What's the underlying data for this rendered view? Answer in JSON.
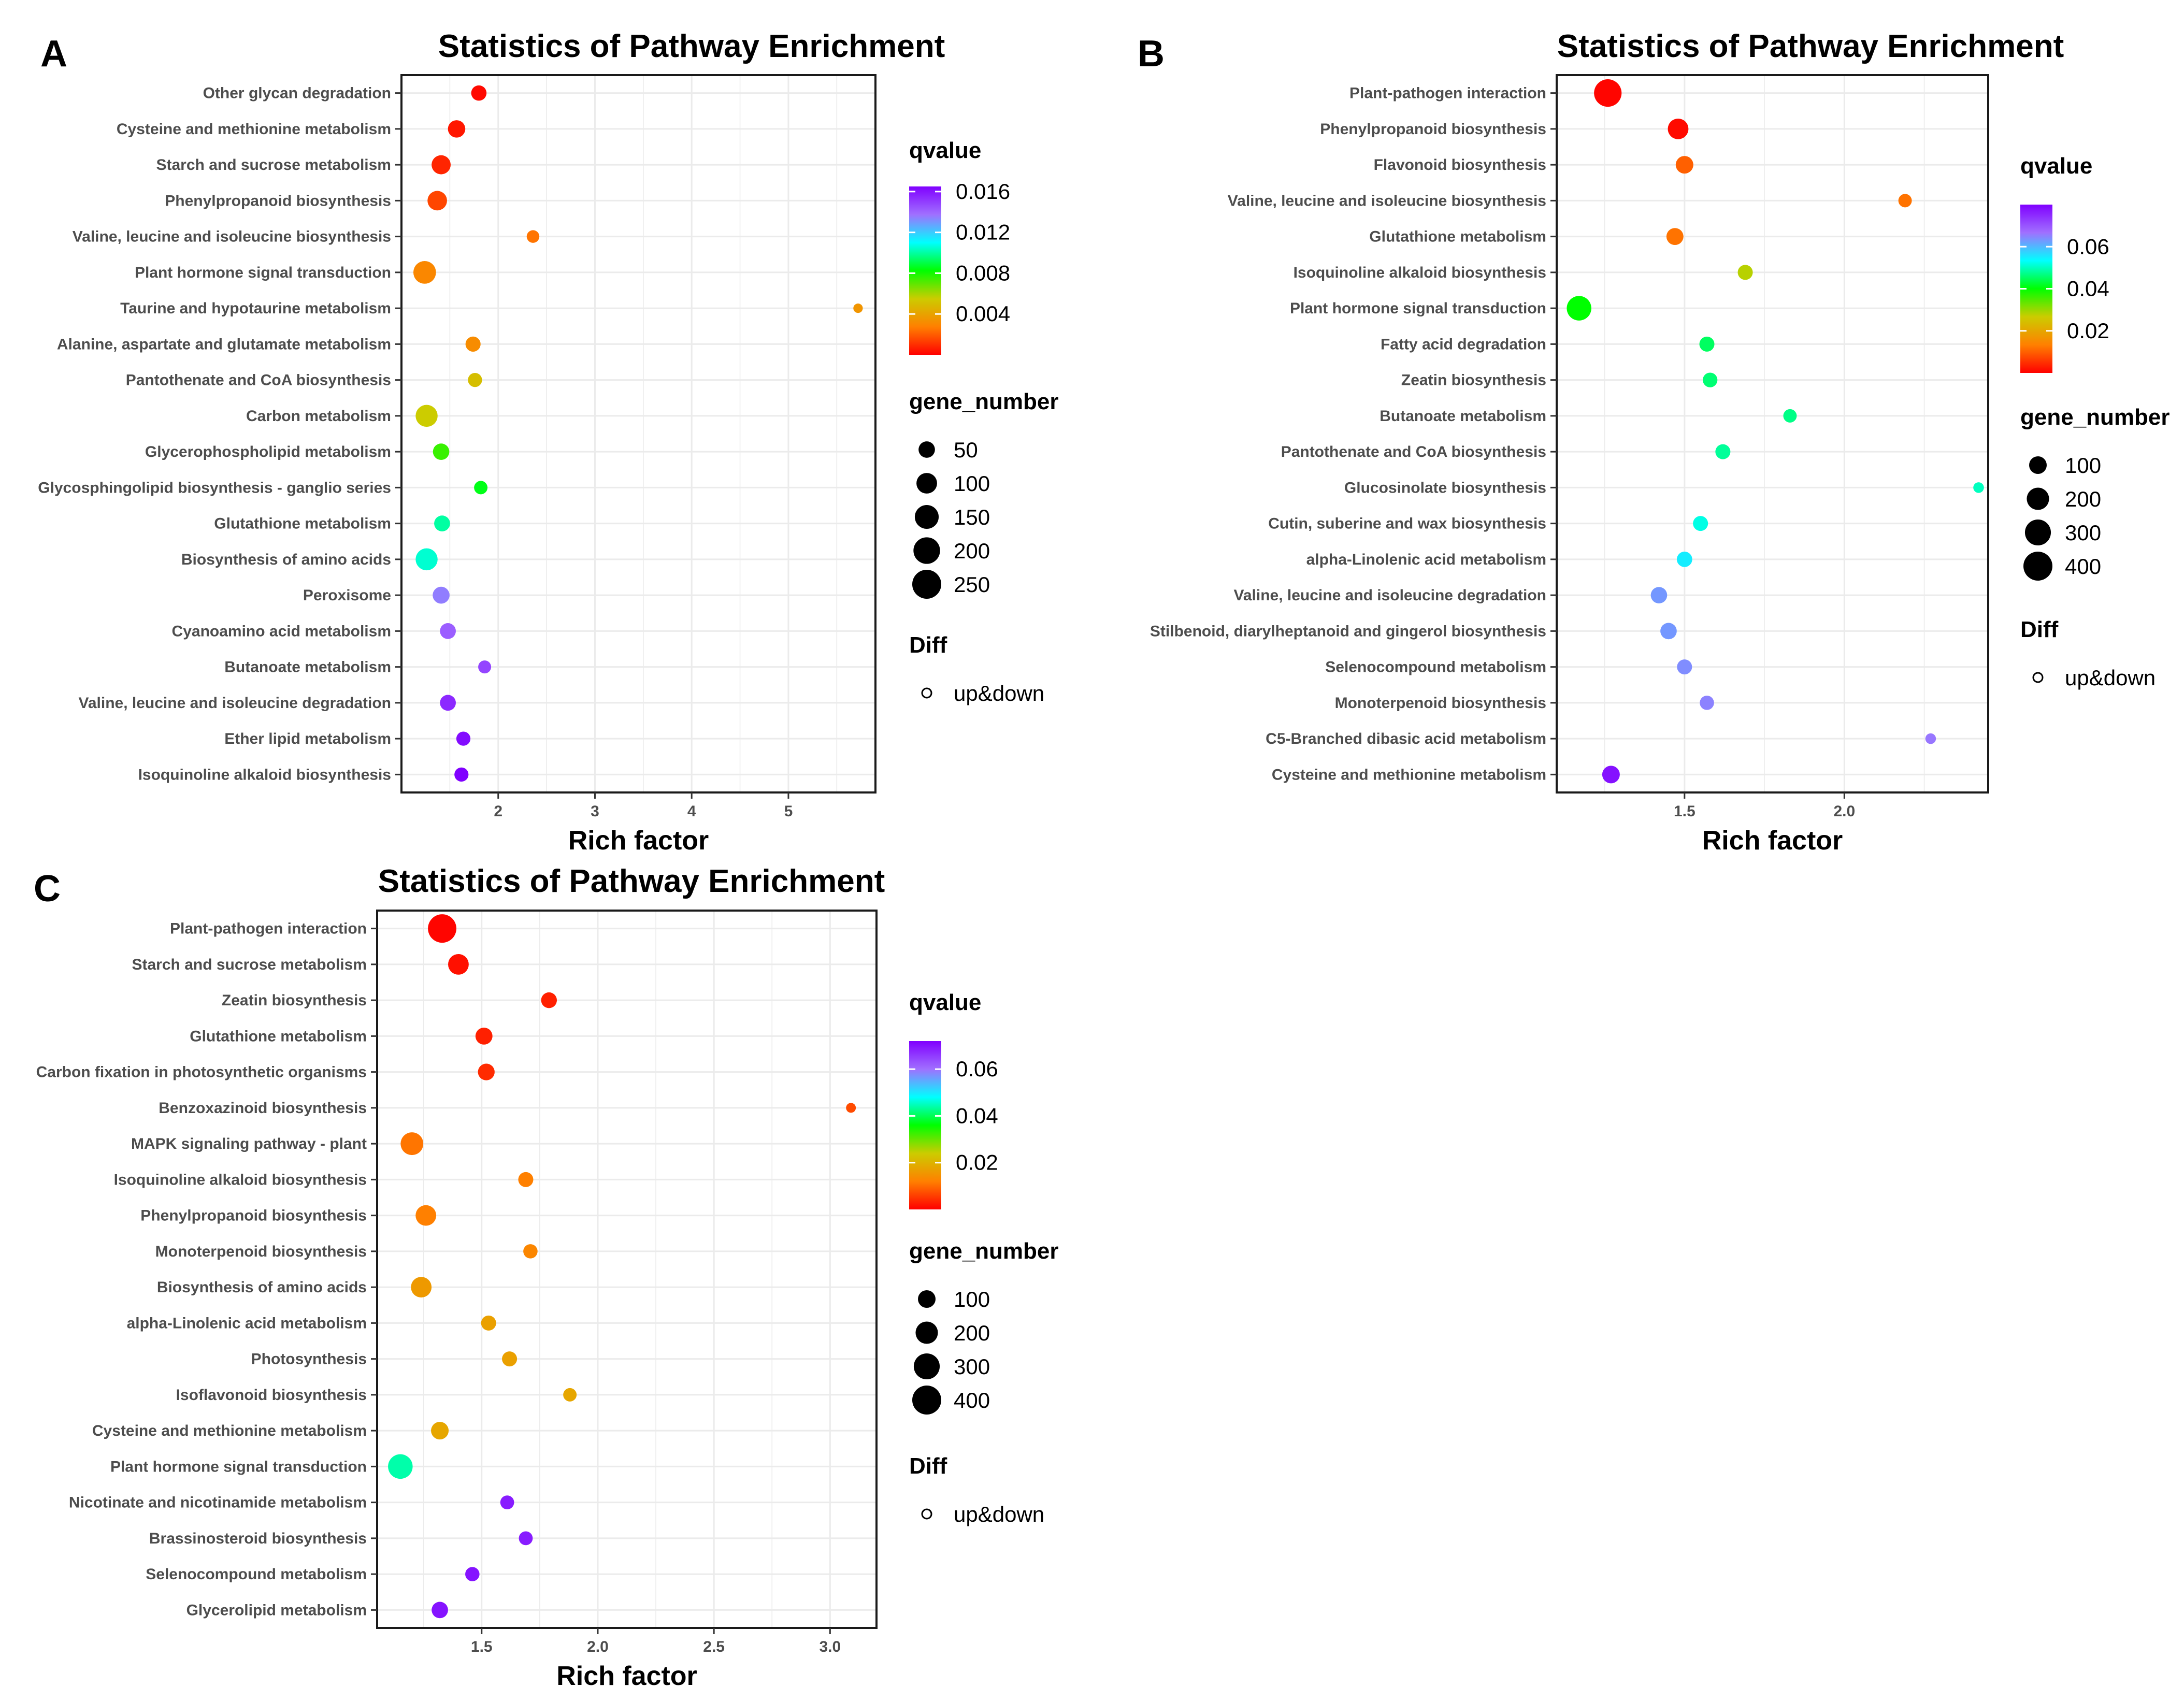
{
  "chart_data": [
    {
      "panel": "A",
      "type": "scatter",
      "title": "Statistics of Pathway Enrichment",
      "xlabel": "Rich factor",
      "ylabel": "",
      "xlim": [
        1.0,
        5.9
      ],
      "xticks": [
        2,
        3,
        4,
        5
      ],
      "xtick_labels": [
        "2",
        "3",
        "4",
        "5"
      ],
      "grid": true,
      "pathways": [
        "Other glycan degradation",
        "Cysteine and methionine metabolism",
        "Starch and sucrose metabolism",
        "Phenylpropanoid biosynthesis",
        "Valine, leucine and isoleucine biosynthesis",
        "Plant hormone signal transduction",
        "Taurine and hypotaurine metabolism",
        "Alanine, aspartate and glutamate metabolism",
        "Pantothenate and CoA biosynthesis",
        "Carbon metabolism",
        "Glycerophospholipid metabolism",
        "Glycosphingolipid biosynthesis - ganglio series",
        "Glutathione metabolism",
        "Biosynthesis of amino acids",
        "Peroxisome",
        "Cyanoamino acid metabolism",
        "Butanoate metabolism",
        "Valine, leucine and isoleucine degradation",
        "Ether lipid metabolism",
        "Isoquinoline alkaloid biosynthesis"
      ],
      "rich_factor": [
        1.8,
        1.57,
        1.41,
        1.37,
        2.36,
        1.24,
        5.72,
        1.74,
        1.76,
        1.26,
        1.41,
        1.82,
        1.42,
        1.26,
        1.41,
        1.48,
        1.86,
        1.48,
        1.64,
        1.62
      ],
      "qvalue": [
        0.0002,
        0.0005,
        0.0008,
        0.0015,
        0.0025,
        0.003,
        0.0035,
        0.0032,
        0.005,
        0.0055,
        0.0075,
        0.0085,
        0.01,
        0.0105,
        0.0135,
        0.0142,
        0.0148,
        0.0155,
        0.0162,
        0.0165
      ],
      "gene_number": [
        40,
        60,
        80,
        85,
        20,
        130,
        5,
        38,
        30,
        120,
        50,
        25,
        45,
        120,
        55,
        45,
        22,
        45,
        30,
        30
      ],
      "legend": {
        "color_title": "qvalue",
        "color_range": [
          0.0,
          0.0165
        ],
        "color_ticks": [
          0.004,
          0.008,
          0.012,
          0.016
        ],
        "color_tick_labels": [
          "0.004",
          "0.008",
          "0.012",
          "0.016"
        ],
        "size_title": "gene_number",
        "size_values": [
          50,
          100,
          150,
          200,
          250
        ],
        "size_labels": [
          "50",
          "100",
          "150",
          "200",
          "250"
        ],
        "diff_title": "Diff",
        "diff_label": "up&down",
        "placement": "right"
      }
    },
    {
      "panel": "B",
      "type": "scatter",
      "title": "Statistics of Pathway Enrichment",
      "xlabel": "Rich factor",
      "ylabel": "",
      "xlim": [
        1.1,
        2.45
      ],
      "xticks": [
        1.5,
        2.0
      ],
      "xtick_labels": [
        "1.5",
        "2.0"
      ],
      "grid": true,
      "pathways": [
        "Plant-pathogen interaction",
        "Phenylpropanoid biosynthesis",
        "Flavonoid biosynthesis",
        "Valine, leucine and isoleucine biosynthesis",
        "Glutathione metabolism",
        "Isoquinoline alkaloid biosynthesis",
        "Plant hormone signal transduction",
        "Fatty acid degradation",
        "Zeatin biosynthesis",
        "Butanoate metabolism",
        "Pantothenate and CoA biosynthesis",
        "Glucosinolate biosynthesis",
        "Cutin, suberine and wax biosynthesis",
        "alpha-Linolenic acid metabolism",
        "Valine, leucine and isoleucine degradation",
        "Stilbenoid, diarylheptanoid and gingerol biosynthesis",
        "Selenocompound metabolism",
        "Monoterpenoid biosynthesis",
        "C5-Branched dibasic acid metabolism",
        "Cysteine and methionine metabolism"
      ],
      "rich_factor": [
        1.26,
        1.48,
        1.5,
        2.19,
        1.47,
        1.69,
        1.17,
        1.57,
        1.58,
        1.83,
        1.62,
        2.42,
        1.55,
        1.5,
        1.42,
        1.45,
        1.5,
        1.57,
        2.27,
        1.27
      ],
      "qvalue": [
        0.0005,
        0.001,
        0.01,
        0.012,
        0.012,
        0.028,
        0.04,
        0.045,
        0.046,
        0.047,
        0.048,
        0.05,
        0.052,
        0.055,
        0.063,
        0.063,
        0.064,
        0.065,
        0.066,
        0.078
      ],
      "gene_number": [
        350,
        160,
        100,
        40,
        90,
        60,
        260,
        60,
        55,
        40,
        60,
        15,
        60,
        65,
        80,
        80,
        60,
        50,
        15,
        100
      ],
      "legend": {
        "color_title": "qvalue",
        "color_range": [
          0.0,
          0.08
        ],
        "color_ticks": [
          0.02,
          0.04,
          0.06
        ],
        "color_tick_labels": [
          "0.02",
          "0.04",
          "0.06"
        ],
        "size_title": "gene_number",
        "size_values": [
          100,
          200,
          300,
          400
        ],
        "size_labels": [
          "100",
          "200",
          "300",
          "400"
        ],
        "diff_title": "Diff",
        "diff_label": "up&down",
        "placement": "right"
      }
    },
    {
      "panel": "C",
      "type": "scatter",
      "title": "Statistics of Pathway Enrichment",
      "xlabel": "Rich factor",
      "ylabel": "",
      "xlim": [
        1.05,
        3.2
      ],
      "xticks": [
        1.5,
        2.0,
        2.5,
        3.0
      ],
      "xtick_labels": [
        "1.5",
        "2.0",
        "2.5",
        "3.0"
      ],
      "grid": true,
      "pathways": [
        "Plant-pathogen interaction",
        "Starch and sucrose metabolism",
        "Zeatin biosynthesis",
        "Glutathione metabolism",
        "Carbon fixation in photosynthetic organisms",
        "Benzoxazinoid biosynthesis",
        "MAPK signaling pathway - plant",
        "Isoquinoline alkaloid biosynthesis",
        "Phenylpropanoid biosynthesis",
        "Monoterpenoid biosynthesis",
        "Biosynthesis of amino acids",
        "alpha-Linolenic acid metabolism",
        "Photosynthesis",
        "Isoflavonoid biosynthesis",
        "Cysteine and methionine metabolism",
        "Plant hormone signal transduction",
        "Nicotinate and nicotinamide metabolism",
        "Brassinosteroid biosynthesis",
        "Selenocompound metabolism",
        "Glycerolipid metabolism"
      ],
      "rich_factor": [
        1.33,
        1.4,
        1.79,
        1.51,
        1.52,
        3.09,
        1.2,
        1.69,
        1.26,
        1.71,
        1.24,
        1.53,
        1.62,
        1.88,
        1.32,
        1.15,
        1.61,
        1.69,
        1.46,
        1.32
      ],
      "qvalue": [
        0.0005,
        0.0015,
        0.003,
        0.003,
        0.004,
        0.007,
        0.011,
        0.012,
        0.012,
        0.013,
        0.016,
        0.017,
        0.017,
        0.018,
        0.018,
        0.044,
        0.069,
        0.069,
        0.07,
        0.07
      ],
      "gene_number": [
        380,
        160,
        70,
        90,
        85,
        10,
        210,
        60,
        160,
        50,
        160,
        60,
        60,
        40,
        100,
        260,
        45,
        45,
        50,
        80
      ],
      "legend": {
        "color_title": "qvalue",
        "color_range": [
          0.0,
          0.072
        ],
        "color_ticks": [
          0.02,
          0.04,
          0.06
        ],
        "color_tick_labels": [
          "0.02",
          "0.04",
          "0.06"
        ],
        "size_title": "gene_number",
        "size_values": [
          100,
          200,
          300,
          400
        ],
        "size_labels": [
          "100",
          "200",
          "300",
          "400"
        ],
        "diff_title": "Diff",
        "diff_label": "up&down",
        "placement": "right"
      }
    }
  ],
  "panel_labels": [
    "A",
    "B",
    "C"
  ],
  "colors": {
    "scale": [
      "#ff0000",
      "#ff8000",
      "#cccc00",
      "#00ff00",
      "#00ffff",
      "#a070ff",
      "#8000ff"
    ],
    "grid": "#ebebeb",
    "text": "#000000",
    "tick_text": "#4d4d4d"
  }
}
